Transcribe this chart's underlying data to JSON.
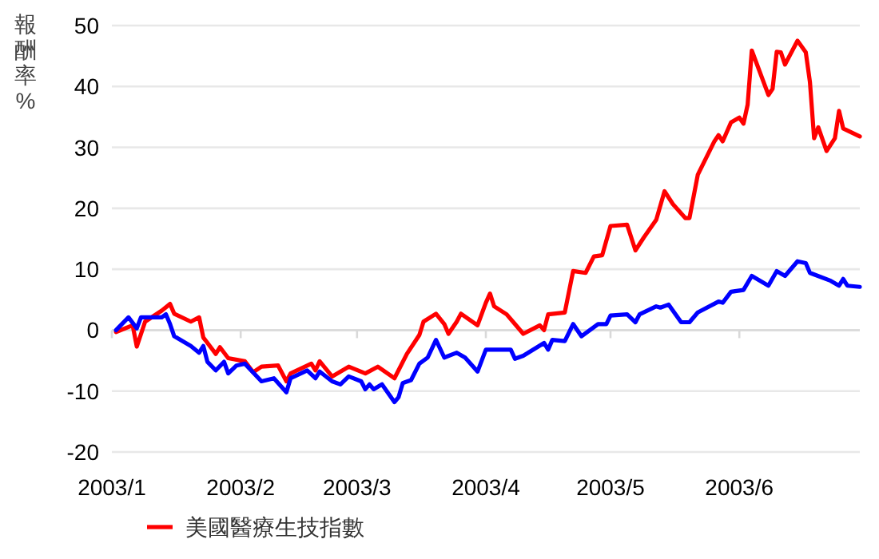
{
  "chart_data": {
    "type": "line",
    "ylabel": "報酬率%",
    "xlim": [
      "2003-01-01",
      "2003-06-30"
    ],
    "xticks": [
      {
        "value": "2003-01-01",
        "label": "2003/1"
      },
      {
        "value": "2003-02-01",
        "label": "2003/2"
      },
      {
        "value": "2003-03-01",
        "label": "2003/3"
      },
      {
        "value": "2003-04-01",
        "label": "2003/4"
      },
      {
        "value": "2003-05-01",
        "label": "2003/5"
      },
      {
        "value": "2003-06-01",
        "label": "2003/6"
      }
    ],
    "ylim": [
      -20,
      50
    ],
    "yticks": [
      -20,
      -10,
      0,
      10,
      20,
      30,
      40,
      50
    ],
    "grid": "y",
    "legend": "bottom",
    "marker": "none",
    "line_style": "solid",
    "series": [
      {
        "name": "美國醫療生技指數",
        "color": "#ff0000",
        "x": [
          "2003-01-02",
          "2003-01-06",
          "2003-01-07",
          "2003-01-09",
          "2003-01-13",
          "2003-01-15",
          "2003-01-16",
          "2003-01-20",
          "2003-01-22",
          "2003-01-23",
          "2003-01-26",
          "2003-01-27",
          "2003-01-29",
          "2003-02-02",
          "2003-02-04",
          "2003-02-06",
          "2003-02-10",
          "2003-02-12",
          "2003-02-13",
          "2003-02-18",
          "2003-02-19",
          "2003-02-20",
          "2003-02-23",
          "2003-02-27",
          "2003-03-03",
          "2003-03-06",
          "2003-03-10",
          "2003-03-13",
          "2003-03-16",
          "2003-03-17",
          "2003-03-20",
          "2003-03-22",
          "2003-03-23",
          "2003-03-25",
          "2003-03-26",
          "2003-03-30",
          "2003-04-01",
          "2003-04-02",
          "2003-04-03",
          "2003-04-06",
          "2003-04-08",
          "2003-04-10",
          "2003-04-14",
          "2003-04-15",
          "2003-04-16",
          "2003-04-20",
          "2003-04-22",
          "2003-04-25",
          "2003-04-27",
          "2003-04-29",
          "2003-05-01",
          "2003-05-05",
          "2003-05-07",
          "2003-05-09",
          "2003-05-12",
          "2003-05-14",
          "2003-05-16",
          "2003-05-19",
          "2003-05-20",
          "2003-05-22",
          "2003-05-26",
          "2003-05-27",
          "2003-05-28",
          "2003-05-30",
          "2003-06-01",
          "2003-06-02",
          "2003-06-03",
          "2003-06-04",
          "2003-06-08",
          "2003-06-09",
          "2003-06-10",
          "2003-06-11",
          "2003-06-12",
          "2003-06-15",
          "2003-06-17",
          "2003-06-18",
          "2003-06-19",
          "2003-06-20",
          "2003-06-22",
          "2003-06-24",
          "2003-06-25",
          "2003-06-26",
          "2003-06-30"
        ],
        "values": [
          -0.3,
          0.8,
          -2.7,
          1.4,
          3.2,
          4.3,
          2.7,
          1.4,
          2.1,
          -1.2,
          -3.9,
          -2.8,
          -4.6,
          -5.1,
          -6.9,
          -6,
          -5.8,
          -8.4,
          -7.1,
          -5.5,
          -6.6,
          -5.1,
          -7.6,
          -6,
          -7.1,
          -6,
          -7.9,
          -3.9,
          -0.8,
          1.4,
          2.7,
          1,
          -0.6,
          1.4,
          2.7,
          0.8,
          4.5,
          6,
          3.9,
          2.6,
          1,
          -0.6,
          0.8,
          0,
          2.6,
          2.9,
          9.7,
          9.4,
          12.1,
          12.3,
          17.1,
          17.3,
          13.1,
          15.2,
          18.1,
          22.8,
          20.7,
          18.4,
          18.4,
          25.5,
          31,
          32,
          31,
          34.1,
          34.9,
          33.9,
          37,
          45.9,
          38.6,
          39.6,
          45.7,
          45.6,
          43.6,
          47.5,
          45.6,
          40.7,
          31.5,
          33.3,
          29.4,
          31.5,
          36,
          33.1,
          31.8
        ]
      },
      {
        "color": "#0000ff",
        "x": [
          "2003-01-02",
          "2003-01-05",
          "2003-01-07",
          "2003-01-08",
          "2003-01-13",
          "2003-01-14",
          "2003-01-15",
          "2003-01-16",
          "2003-01-20",
          "2003-01-22",
          "2003-01-23",
          "2003-01-24",
          "2003-01-26",
          "2003-01-28",
          "2003-01-29",
          "2003-01-31",
          "2003-02-02",
          "2003-02-06",
          "2003-02-09",
          "2003-02-12",
          "2003-02-13",
          "2003-02-17",
          "2003-02-19",
          "2003-02-20",
          "2003-02-23",
          "2003-02-25",
          "2003-02-27",
          "2003-03-02",
          "2003-03-03",
          "2003-03-04",
          "2003-03-05",
          "2003-03-07",
          "2003-03-10",
          "2003-03-11",
          "2003-03-12",
          "2003-03-14",
          "2003-03-16",
          "2003-03-18",
          "2003-03-20",
          "2003-03-22",
          "2003-03-25",
          "2003-03-27",
          "2003-03-30",
          "2003-04-01",
          "2003-04-07",
          "2003-04-08",
          "2003-04-10",
          "2003-04-15",
          "2003-04-16",
          "2003-04-17",
          "2003-04-20",
          "2003-04-22",
          "2003-04-24",
          "2003-04-28",
          "2003-04-30",
          "2003-05-01",
          "2003-05-05",
          "2003-05-07",
          "2003-05-08",
          "2003-05-12",
          "2003-05-13",
          "2003-05-15",
          "2003-05-18",
          "2003-05-20",
          "2003-05-22",
          "2003-05-27",
          "2003-05-28",
          "2003-05-30",
          "2003-06-02",
          "2003-06-04",
          "2003-06-08",
          "2003-06-10",
          "2003-06-12",
          "2003-06-15",
          "2003-06-17",
          "2003-06-18",
          "2003-06-23",
          "2003-06-25",
          "2003-06-26",
          "2003-06-27",
          "2003-06-30"
        ],
        "values": [
          0,
          2.1,
          0.3,
          2.1,
          2.1,
          2.6,
          1,
          -1,
          -2.6,
          -3.7,
          -2.6,
          -5.2,
          -6.6,
          -5.2,
          -7.1,
          -5.8,
          -5.5,
          -8.4,
          -7.9,
          -10.2,
          -7.9,
          -6.6,
          -7.9,
          -6.8,
          -8.4,
          -8.9,
          -7.6,
          -8.4,
          -9.7,
          -8.9,
          -9.7,
          -8.9,
          -11.8,
          -11,
          -8.7,
          -8.2,
          -5.5,
          -4.5,
          -1.6,
          -4.5,
          -3.7,
          -4.5,
          -6.8,
          -3.2,
          -3.2,
          -4.7,
          -4.2,
          -2.1,
          -3.2,
          -1.6,
          -1.8,
          1,
          -1,
          1,
          1,
          2.4,
          2.6,
          1.3,
          2.6,
          3.9,
          3.7,
          4.2,
          1.3,
          1.3,
          2.9,
          4.7,
          4.5,
          6.3,
          6.6,
          8.9,
          7.3,
          9.7,
          8.9,
          11.3,
          11,
          9.4,
          8.1,
          7.3,
          8.4,
          7.3,
          7.1
        ]
      }
    ]
  }
}
